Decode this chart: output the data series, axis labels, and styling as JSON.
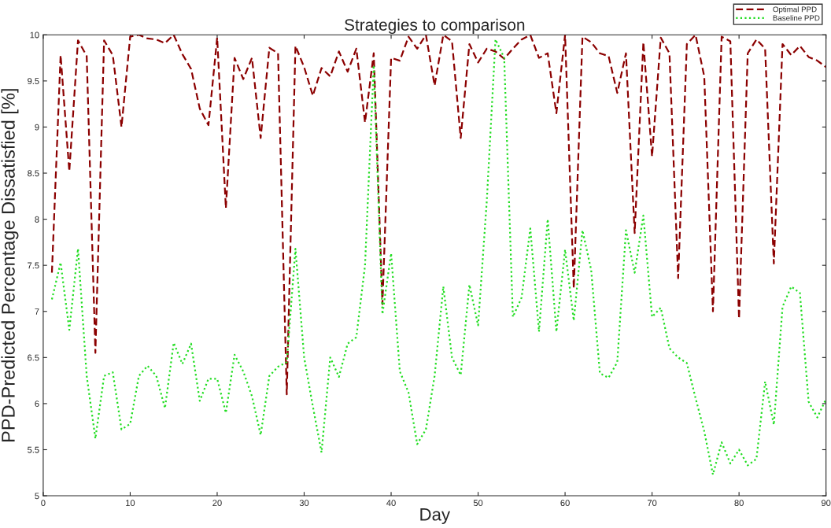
{
  "chart_data": {
    "type": "line",
    "title": "Strategies to comparison",
    "xlabel": "Day",
    "ylabel": "PPD-Predicted Percentage Dissatisfied [%]",
    "x": [
      1,
      2,
      3,
      4,
      5,
      6,
      7,
      8,
      9,
      10,
      11,
      12,
      13,
      14,
      15,
      16,
      17,
      18,
      19,
      20,
      21,
      22,
      23,
      24,
      25,
      26,
      27,
      28,
      29,
      30,
      31,
      32,
      33,
      34,
      35,
      36,
      37,
      38,
      39,
      40,
      41,
      42,
      43,
      44,
      45,
      46,
      47,
      48,
      49,
      50,
      51,
      52,
      53,
      54,
      55,
      56,
      57,
      58,
      59,
      60,
      61,
      62,
      63,
      64,
      65,
      66,
      67,
      68,
      69,
      70,
      71,
      72,
      73,
      74,
      75,
      76,
      77,
      78,
      79,
      80,
      81,
      82,
      83,
      84,
      85,
      86,
      87,
      88,
      89,
      90
    ],
    "series": [
      {
        "name": "Optimal PPD",
        "color": "#8b0000",
        "line_style": "dashed",
        "values": [
          7.42,
          9.78,
          8.52,
          9.94,
          9.77,
          6.55,
          9.94,
          9.78,
          9.0,
          9.98,
          10.0,
          9.96,
          9.95,
          9.91,
          10.0,
          9.79,
          9.63,
          9.2,
          9.02,
          9.97,
          8.12,
          9.75,
          9.52,
          9.75,
          8.88,
          9.86,
          9.8,
          6.1,
          9.88,
          9.65,
          9.34,
          9.64,
          9.55,
          9.82,
          9.6,
          9.85,
          9.05,
          9.8,
          7.08,
          9.75,
          9.72,
          9.98,
          9.85,
          10.0,
          9.45,
          10.0,
          9.93,
          8.88,
          9.9,
          9.7,
          9.85,
          9.82,
          9.74,
          9.85,
          9.95,
          10.0,
          9.75,
          9.8,
          9.15,
          10.0,
          7.25,
          9.98,
          9.92,
          9.8,
          9.77,
          9.37,
          9.8,
          7.85,
          9.92,
          8.68,
          9.97,
          9.8,
          7.36,
          9.9,
          10.0,
          9.55,
          7.0,
          9.98,
          9.93,
          6.92,
          9.8,
          9.95,
          9.85,
          7.52,
          9.9,
          9.78,
          9.88,
          9.76,
          9.72,
          9.65
        ]
      },
      {
        "name": "Baseline PPD",
        "color": "#22dd22",
        "line_style": "dotted",
        "values": [
          7.13,
          7.53,
          6.8,
          7.68,
          6.3,
          5.62,
          6.3,
          6.34,
          5.72,
          5.78,
          6.3,
          6.41,
          6.3,
          5.95,
          6.66,
          6.43,
          6.65,
          6.03,
          6.27,
          6.27,
          5.9,
          6.53,
          6.35,
          6.08,
          5.66,
          6.3,
          6.4,
          6.45,
          7.68,
          6.5,
          5.97,
          5.47,
          6.5,
          6.29,
          6.65,
          6.72,
          7.5,
          9.67,
          6.97,
          7.63,
          6.35,
          6.12,
          5.56,
          5.72,
          6.3,
          7.27,
          6.5,
          6.31,
          7.29,
          6.85,
          8.2,
          9.95,
          9.75,
          6.94,
          7.15,
          7.9,
          6.78,
          8.0,
          6.78,
          7.67,
          6.9,
          7.88,
          7.45,
          6.33,
          6.28,
          6.45,
          7.88,
          7.42,
          8.04,
          6.94,
          7.04,
          6.6,
          6.5,
          6.44,
          6.06,
          5.7,
          5.23,
          5.58,
          5.35,
          5.5,
          5.33,
          5.4,
          6.24,
          5.77,
          7.05,
          7.27,
          7.2,
          6.02,
          5.85,
          6.05
        ]
      }
    ],
    "xlim": [
      0,
      90
    ],
    "xticks": [
      0,
      10,
      20,
      30,
      40,
      50,
      60,
      70,
      80,
      90
    ],
    "ylim": [
      5,
      10
    ],
    "yticks": [
      5,
      {
        "value": 5.5,
        "label": "5.5"
      },
      6,
      {
        "value": 6.5,
        "label": "6.5"
      },
      7,
      {
        "value": 7.5,
        "label": "7.5"
      },
      8,
      {
        "value": 8.5,
        "label": "8.5"
      },
      9,
      {
        "value": 9.5,
        "label": "9.5"
      },
      10
    ],
    "grid": false,
    "legend": "top right",
    "marker": "none"
  }
}
